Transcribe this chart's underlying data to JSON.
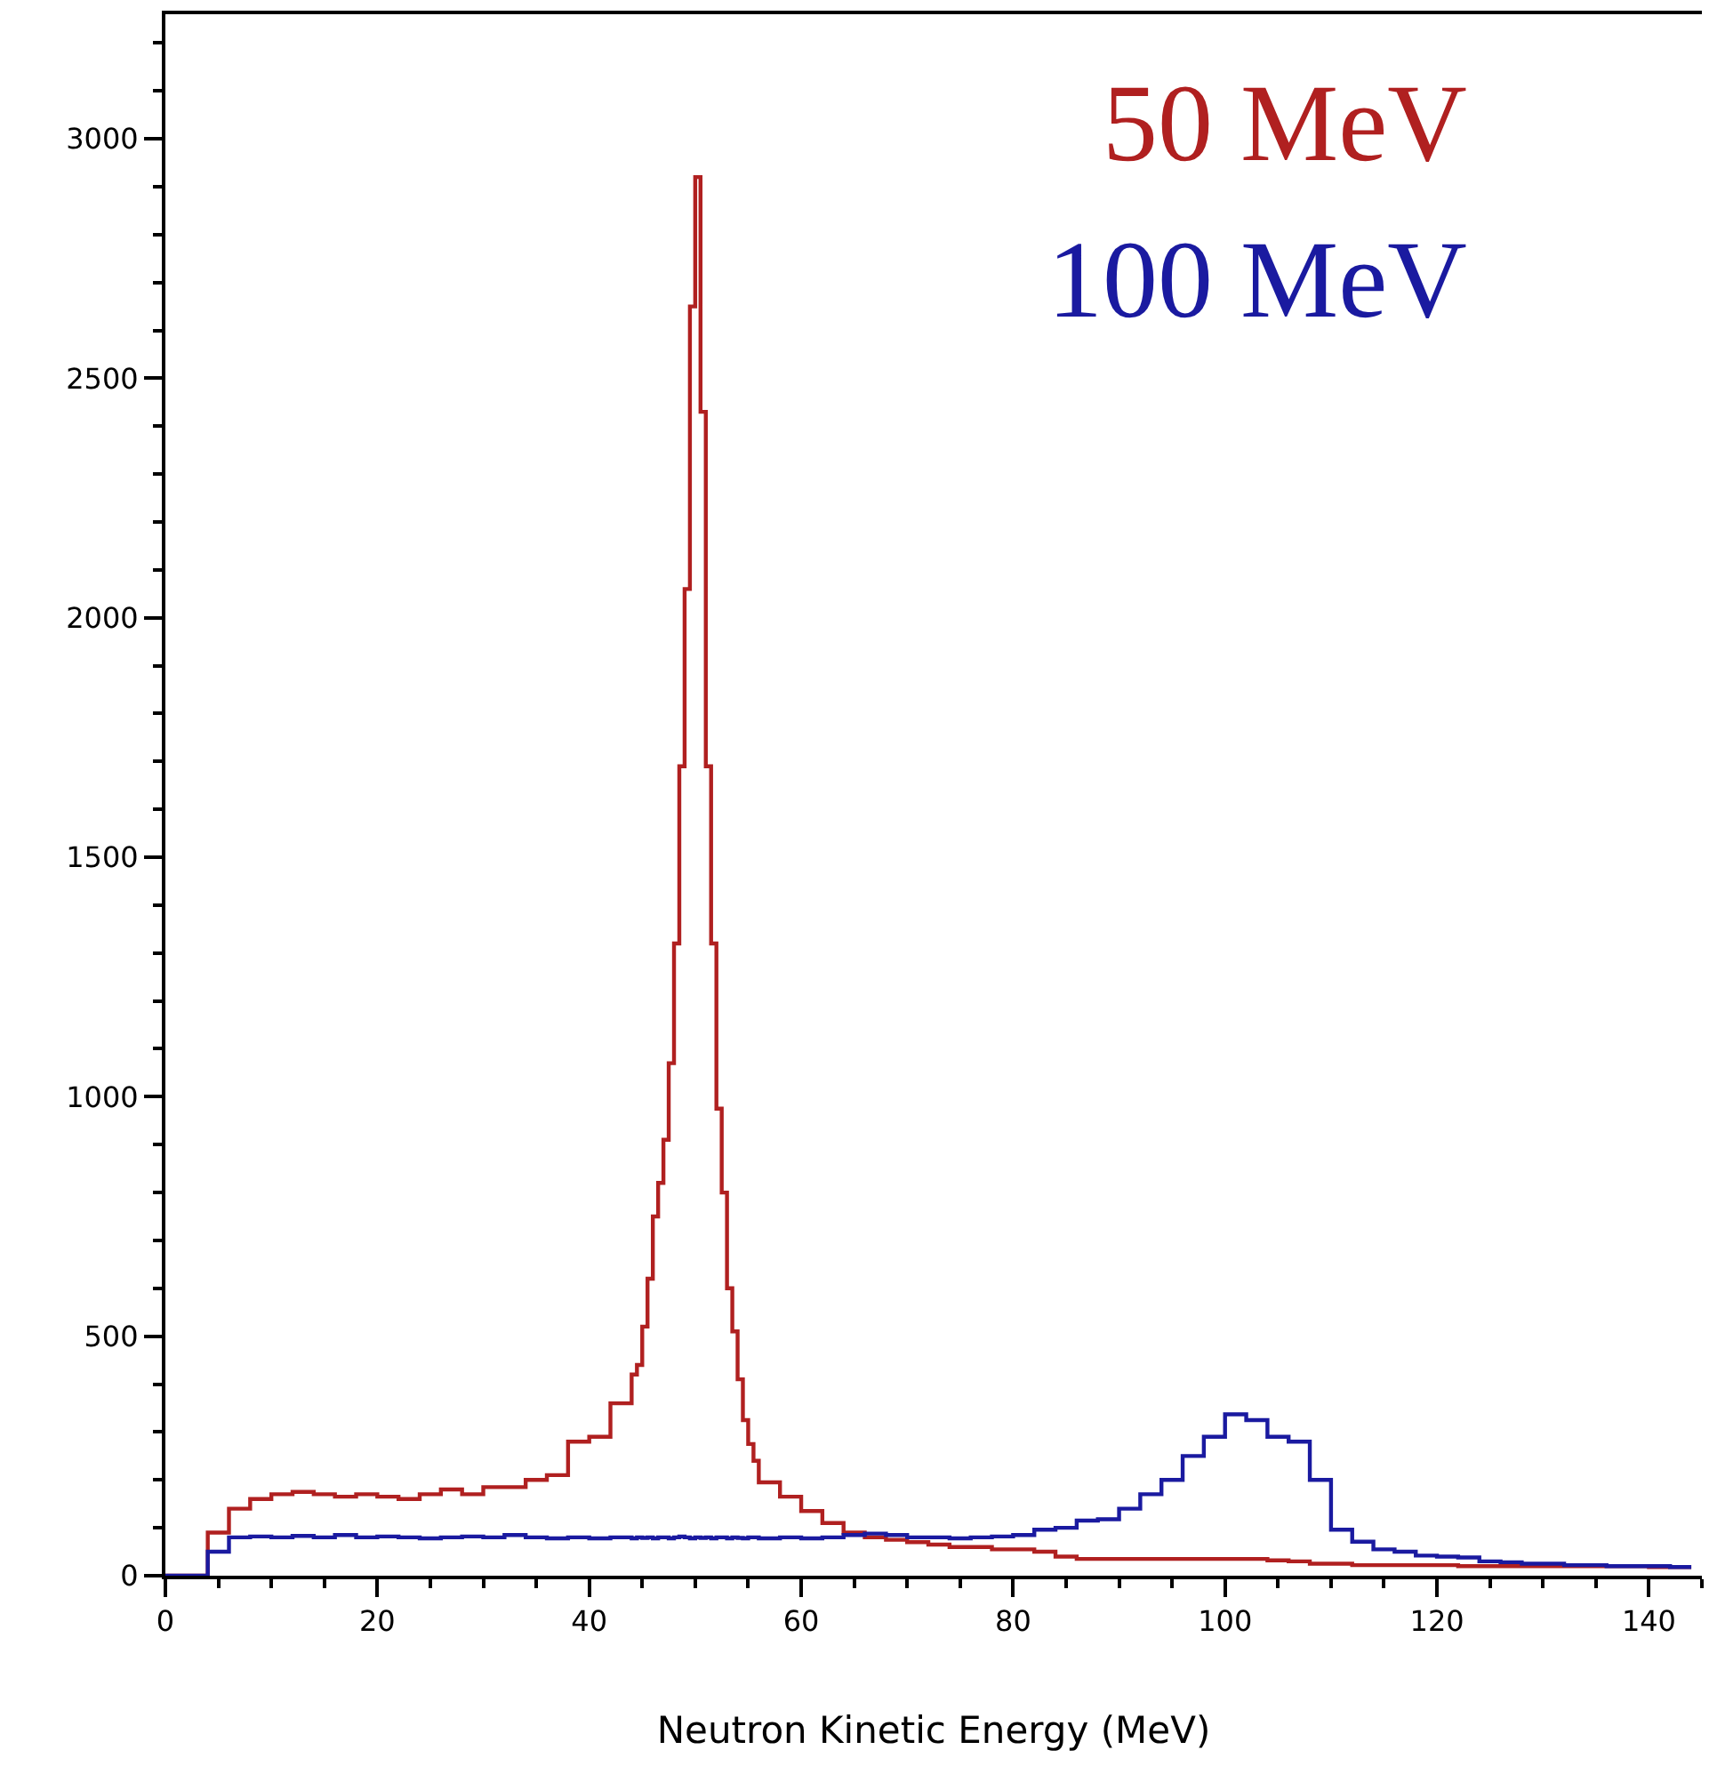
{
  "chart_data": {
    "type": "histogram",
    "xlabel": "Neutron Kinetic Energy (MeV)",
    "bins": [
      0,
      2,
      4,
      6,
      8,
      10,
      12,
      14,
      16,
      18,
      20,
      22,
      24,
      26,
      28,
      30,
      32,
      34,
      36,
      38,
      40,
      42,
      44,
      44.5,
      45,
      45.5,
      46,
      46.5,
      47,
      47.5,
      48,
      48.5,
      49,
      49.5,
      50,
      50.5,
      51,
      51.5,
      52,
      52.5,
      53,
      53.5,
      54,
      54.5,
      55,
      55.5,
      56,
      58,
      60,
      62,
      64,
      66,
      68,
      70,
      72,
      74,
      76,
      78,
      80,
      82,
      84,
      86,
      88,
      90,
      92,
      94,
      96,
      98,
      100,
      102,
      104,
      106,
      108,
      110,
      112,
      114,
      116,
      118,
      120,
      122,
      124,
      126,
      128,
      130,
      132,
      134,
      136,
      138,
      140,
      142,
      144
    ],
    "series": [
      {
        "name": "50 MeV",
        "color": "#b02020",
        "values": [
          0,
          0,
          90,
          140,
          160,
          170,
          175,
          170,
          165,
          170,
          165,
          160,
          170,
          180,
          170,
          185,
          185,
          200,
          210,
          280,
          290,
          360,
          420,
          440,
          520,
          620,
          750,
          820,
          910,
          1070,
          1320,
          1690,
          2060,
          2650,
          2920,
          2430,
          1690,
          1320,
          975,
          800,
          600,
          510,
          410,
          325,
          275,
          240,
          195,
          165,
          135,
          110,
          90,
          80,
          75,
          70,
          65,
          60,
          60,
          55,
          55,
          50,
          40,
          35,
          35,
          35,
          35,
          35,
          35,
          35,
          35,
          35,
          32,
          30,
          25,
          25,
          22,
          22,
          22,
          22,
          22,
          20,
          20,
          20,
          20,
          20,
          20,
          20,
          20,
          20,
          18,
          18
        ]
      },
      {
        "name": "100 MeV",
        "color": "#1a1aa0",
        "values": [
          0,
          0,
          50,
          80,
          82,
          80,
          83,
          80,
          85,
          80,
          82,
          80,
          78,
          80,
          82,
          80,
          85,
          80,
          78,
          80,
          78,
          80,
          78,
          80,
          79,
          80,
          78,
          80,
          80,
          78,
          80,
          82,
          80,
          78,
          80,
          79,
          80,
          78,
          80,
          80,
          78,
          80,
          79,
          78,
          80,
          80,
          78,
          80,
          78,
          80,
          85,
          88,
          85,
          80,
          80,
          78,
          80,
          82,
          85,
          96,
          100,
          115,
          118,
          140,
          170,
          200,
          250,
          290,
          337,
          325,
          290,
          280,
          200,
          96,
          71,
          55,
          50,
          42,
          40,
          38,
          30,
          28,
          25,
          25,
          22,
          22,
          20,
          20,
          20,
          18
        ]
      }
    ],
    "xlim": [
      0,
      145
    ],
    "xticks": [
      0,
      20,
      40,
      60,
      80,
      100,
      120,
      140
    ],
    "ylim": [
      0,
      3260
    ],
    "yticks": [
      0,
      500,
      1000,
      1500,
      2000,
      2500,
      3000
    ],
    "legend": "top right"
  }
}
